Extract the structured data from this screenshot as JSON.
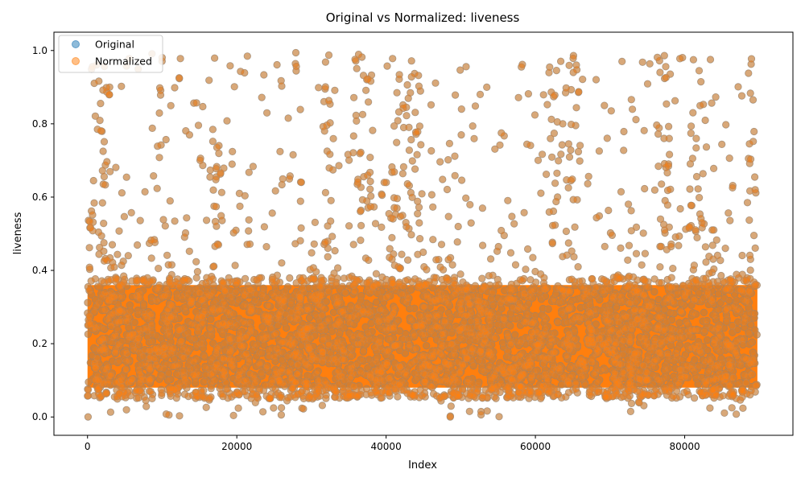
{
  "chart_data": {
    "type": "scatter",
    "title": "Original vs Normalized: liveness",
    "xlabel": "Index",
    "ylabel": "liveness",
    "xlim": [
      -4500,
      94500
    ],
    "ylim": [
      -0.05,
      1.05
    ],
    "x_ticks": [
      0,
      20000,
      40000,
      60000,
      80000
    ],
    "x_tick_labels": [
      "0",
      "20000",
      "40000",
      "60000",
      "80000"
    ],
    "y_ticks": [
      0.0,
      0.2,
      0.4,
      0.6,
      0.8,
      1.0
    ],
    "y_tick_labels": [
      "0.0",
      "0.2",
      "0.4",
      "0.6",
      "0.8",
      "1.0"
    ],
    "grid": false,
    "legend_position": "top-left",
    "x_range": [
      0,
      89740
    ],
    "series": [
      {
        "name": "Original",
        "color": "#1f77b4",
        "alpha": 0.5,
        "marker": "circle",
        "description_values": {
          "dense_band": [
            0.05,
            0.38
          ],
          "full_range": [
            0.0,
            1.0
          ]
        }
      },
      {
        "name": "Normalized",
        "color": "#ff7f0e",
        "alpha": 0.5,
        "marker": "circle",
        "description_values": {
          "dense_band": [
            0.05,
            0.38
          ],
          "full_range": [
            0.0,
            1.0
          ]
        }
      }
    ],
    "dense_high_columns": [
      {
        "x_start": 200,
        "x_end": 2600
      },
      {
        "x_start": 8700,
        "x_end": 10200
      },
      {
        "x_start": 16700,
        "x_end": 18300
      },
      {
        "x_start": 31500,
        "x_end": 33000
      },
      {
        "x_start": 35500,
        "x_end": 38500
      },
      {
        "x_start": 40500,
        "x_end": 44800
      },
      {
        "x_start": 61500,
        "x_end": 66000
      },
      {
        "x_start": 76200,
        "x_end": 78200
      },
      {
        "x_start": 80500,
        "x_end": 83000
      },
      {
        "x_start": 88500,
        "x_end": 89740
      }
    ]
  }
}
